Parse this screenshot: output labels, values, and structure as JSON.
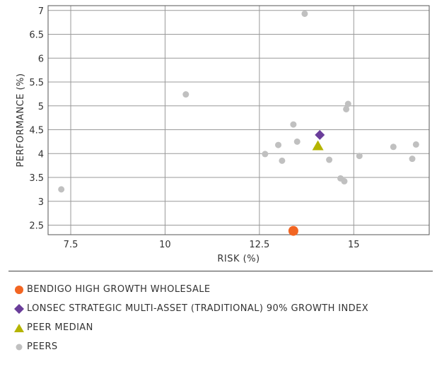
{
  "chart_data": {
    "type": "scatter",
    "xlabel": "RISK (%)",
    "ylabel": "PERFORMANCE (%)",
    "xlim": [
      6.9,
      17.0
    ],
    "ylim": [
      2.3,
      7.1
    ],
    "xticks": [
      7.5,
      10,
      12.5,
      15
    ],
    "xtick_labels": [
      "7.5",
      "10",
      "12.5",
      "15"
    ],
    "yticks": [
      2.5,
      3,
      3.5,
      4,
      4.5,
      5,
      5.5,
      6,
      6.5,
      7
    ],
    "ytick_labels": [
      "2.5",
      "3",
      "3.5",
      "4",
      "4.5",
      "5",
      "5.5",
      "6",
      "6.5",
      "7"
    ],
    "grid": true,
    "legend_position": "bottom",
    "colors": {
      "fund": "#f26522",
      "index": "#6a3d9a",
      "median": "#b5b400",
      "peers": "#c0c0c0"
    },
    "series": [
      {
        "name": "BENDIGO HIGH GROWTH WHOLESALE",
        "marker": "circle",
        "color": "#f26522",
        "points": [
          [
            13.4,
            2.38
          ]
        ]
      },
      {
        "name": "LONSEC STRATEGIC MULTI-ASSET (TRADITIONAL) 90% GROWTH INDEX",
        "marker": "diamond",
        "color": "#6a3d9a",
        "points": [
          [
            14.1,
            4.39
          ]
        ]
      },
      {
        "name": "PEER MEDIAN",
        "marker": "triangle",
        "color": "#b5b400",
        "points": [
          [
            14.05,
            4.16
          ]
        ]
      },
      {
        "name": "PEERS",
        "marker": "circle",
        "color": "#c0c0c0",
        "points": [
          [
            7.25,
            3.25
          ],
          [
            10.55,
            5.24
          ],
          [
            13.7,
            6.93
          ],
          [
            12.65,
            3.99
          ],
          [
            13.0,
            4.18
          ],
          [
            13.1,
            3.85
          ],
          [
            13.4,
            4.61
          ],
          [
            13.5,
            4.25
          ],
          [
            14.35,
            3.87
          ],
          [
            14.65,
            3.48
          ],
          [
            14.75,
            3.42
          ],
          [
            14.8,
            4.93
          ],
          [
            14.85,
            5.04
          ],
          [
            15.15,
            3.95
          ],
          [
            16.05,
            4.14
          ],
          [
            16.55,
            3.89
          ],
          [
            16.65,
            4.19
          ]
        ]
      }
    ]
  }
}
